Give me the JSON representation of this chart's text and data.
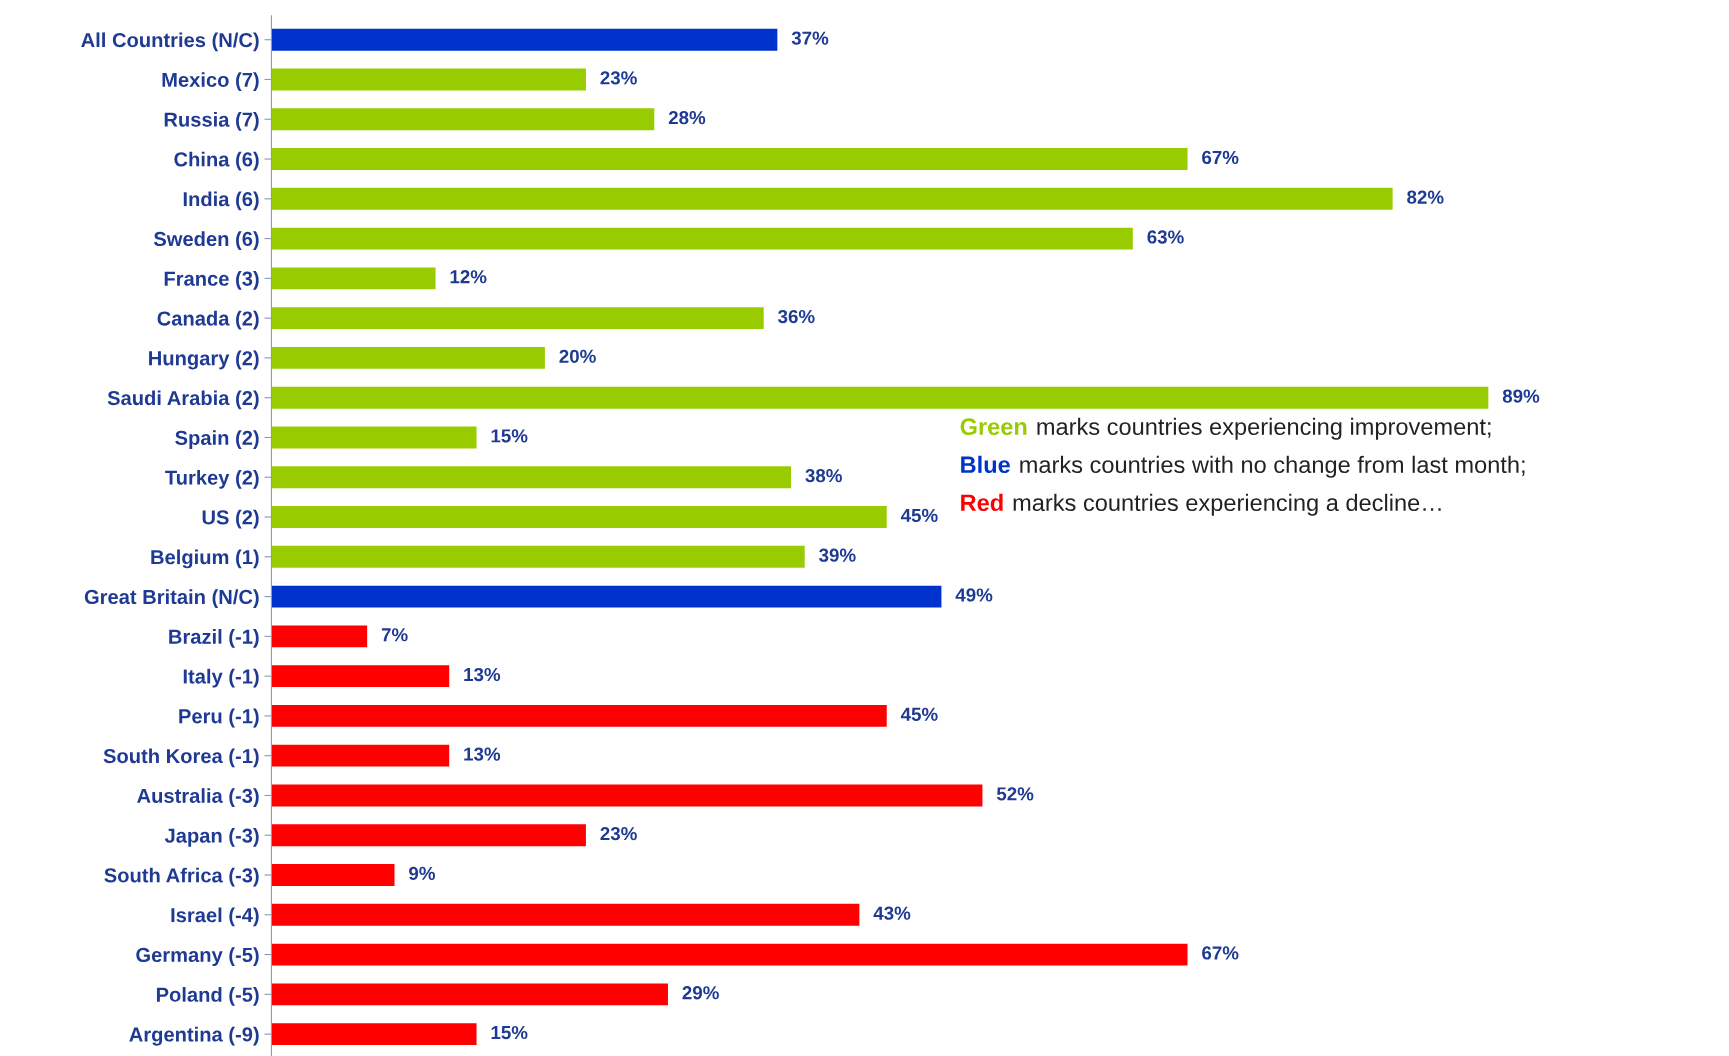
{
  "chart_data": {
    "type": "bar",
    "orientation": "horizontal",
    "categories": [
      "All Countries (N/C)",
      "Mexico (7)",
      "Russia (7)",
      "China (6)",
      "India (6)",
      "Sweden (6)",
      "France (3)",
      "Canada (2)",
      "Hungary (2)",
      "Saudi Arabia (2)",
      "Spain (2)",
      "Turkey (2)",
      "US (2)",
      "Belgium (1)",
      "Great Britain (N/C)",
      "Brazil (-1)",
      "Italy (-1)",
      "Peru (-1)",
      "South Korea (-1)",
      "Australia (-3)",
      "Japan (-3)",
      "South Africa (-3)",
      "Israel (-4)",
      "Germany (-5)",
      "Poland (-5)",
      "Argentina (-9)"
    ],
    "values": [
      37,
      23,
      28,
      67,
      82,
      63,
      12,
      36,
      20,
      89,
      15,
      38,
      45,
      39,
      49,
      7,
      13,
      45,
      13,
      52,
      23,
      9,
      43,
      67,
      29,
      15
    ],
    "value_labels": [
      "37%",
      "23%",
      "28%",
      "67%",
      "82%",
      "63%",
      "12%",
      "36%",
      "20%",
      "89%",
      "15%",
      "38%",
      "45%",
      "39%",
      "49%",
      "7%",
      "13%",
      "45%",
      "13%",
      "52%",
      "23%",
      "9%",
      "43%",
      "67%",
      "29%",
      "15%"
    ],
    "colors": [
      "#0033cc",
      "#99cc00",
      "#99cc00",
      "#99cc00",
      "#99cc00",
      "#99cc00",
      "#99cc00",
      "#99cc00",
      "#99cc00",
      "#99cc00",
      "#99cc00",
      "#99cc00",
      "#99cc00",
      "#99cc00",
      "#0033cc",
      "#ff0000",
      "#ff0000",
      "#ff0000",
      "#ff0000",
      "#ff0000",
      "#ff0000",
      "#ff0000",
      "#ff0000",
      "#ff0000",
      "#ff0000",
      "#ff0000"
    ],
    "tick_labels": "y",
    "grid": false,
    "legend": false,
    "annotations": [
      "Green marks countries experiencing improvement;",
      "Blue marks countries with no change from last month;",
      "Red marks countries experiencing a decline…"
    ]
  }
}
